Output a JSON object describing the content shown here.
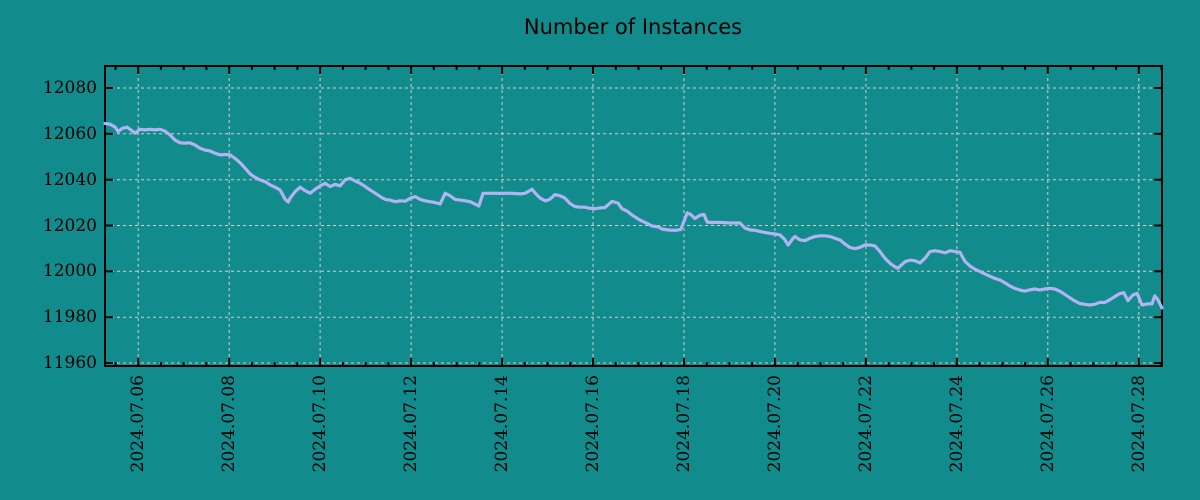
{
  "title": "Number of Instances",
  "colors": {
    "background": "#118b8b",
    "line": "#b1b3f2",
    "grid": "#cfcfcf",
    "axis": "#000000",
    "text": "#000000"
  },
  "chart_data": {
    "type": "line",
    "title": "Number of Instances",
    "legend": false,
    "grid": true,
    "x_axis": {
      "tick_labels": [
        "2024.07.06",
        "2024.07.08",
        "2024.07.10",
        "2024.07.12",
        "2024.07.14",
        "2024.07.16",
        "2024.07.18",
        "2024.07.20",
        "2024.07.22",
        "2024.07.24",
        "2024.07.26",
        "2024.07.28"
      ],
      "tick_days": [
        6,
        8,
        10,
        12,
        14,
        16,
        18,
        20,
        22,
        24,
        26,
        28
      ],
      "range_days": [
        5.27,
        28.51
      ],
      "minor_tick_interval_days": 0.5
    },
    "y_axis": {
      "ticks": [
        11960,
        11980,
        12000,
        12020,
        12040,
        12060,
        12080
      ],
      "range": [
        11958.7,
        12089.6
      ]
    },
    "series": [
      {
        "name": "Number of Instances",
        "points": [
          [
            5.27,
            12064.5
          ],
          [
            5.38,
            12064.2
          ],
          [
            5.49,
            12063.0
          ],
          [
            5.56,
            12061.0
          ],
          [
            5.65,
            12062.4
          ],
          [
            5.76,
            12062.9
          ],
          [
            5.85,
            12061.5
          ],
          [
            5.93,
            12060.3
          ],
          [
            6.04,
            12062.0
          ],
          [
            6.15,
            12061.7
          ],
          [
            6.26,
            12062.0
          ],
          [
            6.37,
            12061.7
          ],
          [
            6.48,
            12062.0
          ],
          [
            6.59,
            12061.2
          ],
          [
            6.7,
            12059.5
          ],
          [
            6.81,
            12057.3
          ],
          [
            6.92,
            12056.1
          ],
          [
            7.03,
            12055.9
          ],
          [
            7.14,
            12056.1
          ],
          [
            7.25,
            12055.1
          ],
          [
            7.36,
            12053.7
          ],
          [
            7.47,
            12052.9
          ],
          [
            7.58,
            12052.5
          ],
          [
            7.69,
            12051.5
          ],
          [
            7.8,
            12050.8
          ],
          [
            7.91,
            12051.0
          ],
          [
            8.02,
            12050.8
          ],
          [
            8.13,
            12049.3
          ],
          [
            8.24,
            12047.4
          ],
          [
            8.35,
            12045.0
          ],
          [
            8.46,
            12042.5
          ],
          [
            8.57,
            12041.0
          ],
          [
            8.68,
            12039.9
          ],
          [
            8.79,
            12039.1
          ],
          [
            8.9,
            12037.7
          ],
          [
            9.01,
            12036.7
          ],
          [
            9.12,
            12035.5
          ],
          [
            9.23,
            12031.5
          ],
          [
            9.3,
            12030.2
          ],
          [
            9.34,
            12031.9
          ],
          [
            9.45,
            12034.8
          ],
          [
            9.56,
            12036.7
          ],
          [
            9.67,
            12035.2
          ],
          [
            9.78,
            12034.1
          ],
          [
            9.89,
            12035.8
          ],
          [
            10.0,
            12037.3
          ],
          [
            10.11,
            12038.4
          ],
          [
            10.22,
            12037.0
          ],
          [
            10.33,
            12038.0
          ],
          [
            10.44,
            12037.3
          ],
          [
            10.55,
            12039.9
          ],
          [
            10.66,
            12040.6
          ],
          [
            10.77,
            12039.4
          ],
          [
            10.88,
            12038.4
          ],
          [
            10.99,
            12037.0
          ],
          [
            11.1,
            12035.5
          ],
          [
            11.21,
            12034.1
          ],
          [
            11.32,
            12032.6
          ],
          [
            11.43,
            12031.4
          ],
          [
            11.54,
            12031.1
          ],
          [
            11.65,
            12030.4
          ],
          [
            11.76,
            12030.8
          ],
          [
            11.87,
            12030.6
          ],
          [
            11.98,
            12031.9
          ],
          [
            12.09,
            12032.6
          ],
          [
            12.2,
            12031.4
          ],
          [
            12.31,
            12030.8
          ],
          [
            12.42,
            12030.4
          ],
          [
            12.53,
            12030.0
          ],
          [
            12.64,
            12029.4
          ],
          [
            12.75,
            12034.1
          ],
          [
            12.86,
            12032.9
          ],
          [
            12.97,
            12031.4
          ],
          [
            13.08,
            12031.1
          ],
          [
            13.19,
            12030.8
          ],
          [
            13.3,
            12030.4
          ],
          [
            13.41,
            12029.3
          ],
          [
            13.49,
            12028.5
          ],
          [
            13.58,
            12034.0
          ],
          [
            13.74,
            12034.1
          ],
          [
            13.96,
            12034.0
          ],
          [
            14.18,
            12034.1
          ],
          [
            14.4,
            12033.8
          ],
          [
            14.51,
            12034.1
          ],
          [
            14.66,
            12035.8
          ],
          [
            14.73,
            12034.1
          ],
          [
            14.84,
            12031.9
          ],
          [
            14.95,
            12030.8
          ],
          [
            15.05,
            12031.4
          ],
          [
            15.16,
            12033.5
          ],
          [
            15.27,
            12033.0
          ],
          [
            15.38,
            12032.0
          ],
          [
            15.49,
            12029.7
          ],
          [
            15.6,
            12028.3
          ],
          [
            15.71,
            12028.0
          ],
          [
            15.82,
            12028.0
          ],
          [
            15.93,
            12027.5
          ],
          [
            16.04,
            12027.3
          ],
          [
            16.15,
            12027.7
          ],
          [
            16.26,
            12027.8
          ],
          [
            16.33,
            12029.0
          ],
          [
            16.42,
            12030.5
          ],
          [
            16.55,
            12029.8
          ],
          [
            16.64,
            12027.3
          ],
          [
            16.75,
            12026.3
          ],
          [
            16.88,
            12024.3
          ],
          [
            17.03,
            12022.4
          ],
          [
            17.19,
            12020.9
          ],
          [
            17.3,
            12019.8
          ],
          [
            17.43,
            12019.4
          ],
          [
            17.54,
            12018.3
          ],
          [
            17.69,
            12018.0
          ],
          [
            17.82,
            12017.9
          ],
          [
            17.93,
            12018.3
          ],
          [
            18.07,
            12025.5
          ],
          [
            18.15,
            12024.8
          ],
          [
            18.24,
            12023.0
          ],
          [
            18.35,
            12024.5
          ],
          [
            18.44,
            12024.8
          ],
          [
            18.51,
            12021.5
          ],
          [
            18.62,
            12021.3
          ],
          [
            18.79,
            12021.4
          ],
          [
            19.01,
            12021.1
          ],
          [
            19.23,
            12021.1
          ],
          [
            19.34,
            12018.9
          ],
          [
            19.45,
            12018.1
          ],
          [
            19.56,
            12017.9
          ],
          [
            19.67,
            12017.4
          ],
          [
            19.78,
            12017.0
          ],
          [
            19.89,
            12016.6
          ],
          [
            20.0,
            12016.3
          ],
          [
            20.11,
            12015.9
          ],
          [
            20.22,
            12013.7
          ],
          [
            20.29,
            12011.5
          ],
          [
            20.4,
            12014.4
          ],
          [
            20.44,
            12015.2
          ],
          [
            20.55,
            12013.7
          ],
          [
            20.66,
            12013.4
          ],
          [
            20.77,
            12014.4
          ],
          [
            20.88,
            12015.2
          ],
          [
            20.99,
            12015.5
          ],
          [
            21.1,
            12015.5
          ],
          [
            21.21,
            12015.2
          ],
          [
            21.32,
            12014.4
          ],
          [
            21.43,
            12013.7
          ],
          [
            21.54,
            12011.9
          ],
          [
            21.65,
            12010.4
          ],
          [
            21.76,
            12009.9
          ],
          [
            21.87,
            12010.5
          ],
          [
            21.98,
            12011.5
          ],
          [
            22.09,
            12011.5
          ],
          [
            22.2,
            12011.1
          ],
          [
            22.31,
            12008.6
          ],
          [
            22.42,
            12005.7
          ],
          [
            22.53,
            12003.5
          ],
          [
            22.64,
            12002.0
          ],
          [
            22.7,
            12001.3
          ],
          [
            22.86,
            12004.2
          ],
          [
            22.97,
            12004.9
          ],
          [
            23.08,
            12004.6
          ],
          [
            23.19,
            12003.7
          ],
          [
            23.3,
            12005.7
          ],
          [
            23.41,
            12008.6
          ],
          [
            23.52,
            12009.0
          ],
          [
            23.63,
            12008.6
          ],
          [
            23.74,
            12008.1
          ],
          [
            23.85,
            12009.0
          ],
          [
            23.96,
            12008.6
          ],
          [
            24.07,
            12008.3
          ],
          [
            24.13,
            12006.0
          ],
          [
            24.18,
            12004.3
          ],
          [
            24.29,
            12002.3
          ],
          [
            24.4,
            12000.9
          ],
          [
            24.51,
            11999.9
          ],
          [
            24.62,
            11998.8
          ],
          [
            24.73,
            11997.8
          ],
          [
            24.84,
            11996.9
          ],
          [
            24.95,
            11996.2
          ],
          [
            25.05,
            11995.1
          ],
          [
            25.16,
            11993.7
          ],
          [
            25.27,
            11992.6
          ],
          [
            25.38,
            11991.9
          ],
          [
            25.49,
            11991.4
          ],
          [
            25.6,
            11991.9
          ],
          [
            25.71,
            11992.3
          ],
          [
            25.82,
            11991.9
          ],
          [
            25.93,
            11992.3
          ],
          [
            26.04,
            11992.6
          ],
          [
            26.15,
            11992.3
          ],
          [
            26.26,
            11991.4
          ],
          [
            26.37,
            11990.0
          ],
          [
            26.48,
            11988.5
          ],
          [
            26.59,
            11987.1
          ],
          [
            26.7,
            11986.0
          ],
          [
            26.81,
            11985.6
          ],
          [
            26.92,
            11985.3
          ],
          [
            27.03,
            11985.6
          ],
          [
            27.14,
            11986.5
          ],
          [
            27.25,
            11986.4
          ],
          [
            27.36,
            11987.6
          ],
          [
            27.47,
            11989.0
          ],
          [
            27.58,
            11990.3
          ],
          [
            27.67,
            11990.7
          ],
          [
            27.76,
            11987.2
          ],
          [
            27.87,
            11989.7
          ],
          [
            27.96,
            11990.4
          ],
          [
            28.07,
            11985.3
          ],
          [
            28.18,
            11985.8
          ],
          [
            28.29,
            11985.8
          ],
          [
            28.35,
            11989.3
          ],
          [
            28.42,
            11987.6
          ],
          [
            28.51,
            11984.0
          ]
        ]
      }
    ]
  }
}
